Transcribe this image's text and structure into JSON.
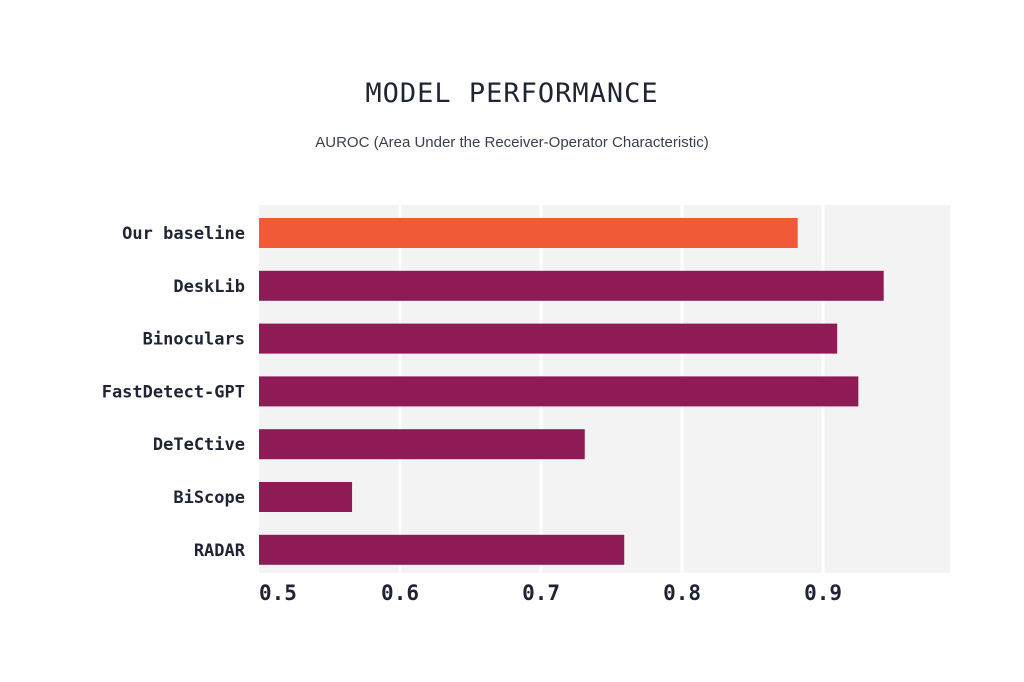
{
  "chart_data": {
    "type": "bar",
    "orientation": "horizontal",
    "title": "MODEL PERFORMANCE",
    "subtitle": "AUROC (Area Under the Receiver-Operator Characteristic)",
    "categories": [
      "Our baseline",
      "DeskLib",
      "Binoculars",
      "FastDetect-GPT",
      "DeTeCtive",
      "BiScope",
      "RADAR"
    ],
    "values": [
      0.882,
      0.943,
      0.91,
      0.925,
      0.731,
      0.566,
      0.759
    ],
    "xlim": [
      0.5,
      0.99
    ],
    "xticks": [
      0.5,
      0.6,
      0.7,
      0.8,
      0.9
    ],
    "xtick_labels": [
      "0.5",
      "0.6",
      "0.7",
      "0.8",
      "0.9"
    ],
    "grid": "vertical",
    "highlight_index": 0,
    "colors": {
      "highlight": "#f05a37",
      "bar": "#8e1b55",
      "plot_background": "#f3f3f3",
      "gridline": "#ffffff",
      "text": "#1f2433"
    }
  }
}
